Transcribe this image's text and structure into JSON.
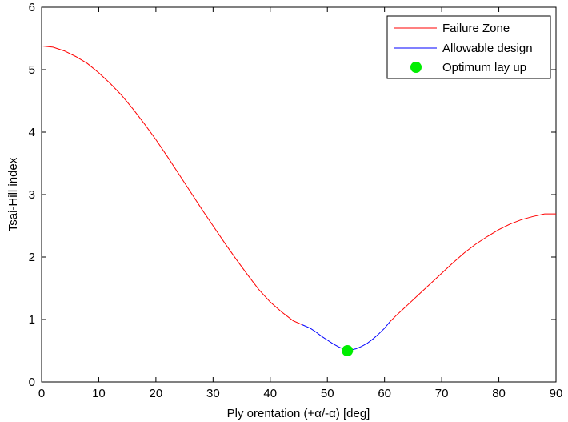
{
  "chart_data": {
    "type": "line",
    "title": "",
    "xlabel_parts": [
      "Ply orentation (+",
      "α",
      "/-",
      "α",
      ") [deg]"
    ],
    "ylabel": "Tsai-Hill index",
    "xlim": [
      0,
      90
    ],
    "ylim": [
      0,
      6
    ],
    "xticks": [
      0,
      10,
      20,
      30,
      40,
      50,
      60,
      70,
      80,
      90
    ],
    "yticks": [
      0,
      1,
      2,
      3,
      4,
      5,
      6
    ],
    "grid": false,
    "legend_position": "top-right",
    "series": [
      {
        "name": "Failure Zone",
        "color": "#ff0000",
        "style": "line",
        "segments": [
          {
            "x": [
              0,
              2,
              4,
              6,
              8,
              10,
              12,
              14,
              16,
              18,
              20,
              22,
              24,
              26,
              28,
              30,
              32,
              34,
              36,
              38,
              40,
              42,
              44,
              45.5
            ],
            "y": [
              5.38,
              5.36,
              5.3,
              5.21,
              5.1,
              4.95,
              4.78,
              4.59,
              4.37,
              4.13,
              3.88,
              3.61,
              3.33,
              3.05,
              2.77,
              2.5,
              2.23,
              1.97,
              1.72,
              1.48,
              1.28,
              1.12,
              0.98,
              0.92
            ]
          },
          {
            "x": [
              61,
              62,
              64,
              66,
              68,
              70,
              72,
              74,
              76,
              78,
              80,
              82,
              84,
              86,
              88,
              90
            ],
            "y": [
              0.97,
              1.06,
              1.23,
              1.4,
              1.57,
              1.74,
              1.91,
              2.07,
              2.21,
              2.33,
              2.44,
              2.53,
              2.6,
              2.65,
              2.69,
              2.69
            ]
          }
        ]
      },
      {
        "name": "Allowable design",
        "color": "#0000ff",
        "style": "line",
        "segments": [
          {
            "x": [
              45.5,
              47,
              48,
              49,
              50,
              51,
              52,
              53,
              53.5,
              54,
              55,
              56,
              57,
              58,
              59,
              60,
              61
            ],
            "y": [
              0.92,
              0.86,
              0.8,
              0.73,
              0.67,
              0.61,
              0.56,
              0.52,
              0.5,
              0.51,
              0.53,
              0.57,
              0.62,
              0.69,
              0.77,
              0.86,
              0.97
            ]
          }
        ]
      },
      {
        "name": "Optimum lay up",
        "color": "#00ee00",
        "style": "marker",
        "points": [
          {
            "x": 53.5,
            "y": 0.5
          }
        ]
      }
    ]
  }
}
